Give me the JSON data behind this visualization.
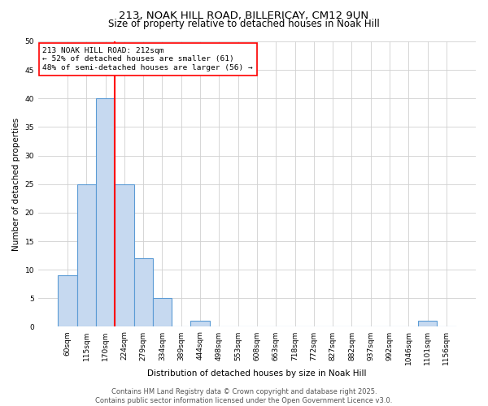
{
  "title_line1": "213, NOAK HILL ROAD, BILLERICAY, CM12 9UN",
  "title_line2": "Size of property relative to detached houses in Noak Hill",
  "xlabel": "Distribution of detached houses by size in Noak Hill",
  "ylabel": "Number of detached properties",
  "bin_labels": [
    "60sqm",
    "115sqm",
    "170sqm",
    "224sqm",
    "279sqm",
    "334sqm",
    "389sqm",
    "444sqm",
    "498sqm",
    "553sqm",
    "608sqm",
    "663sqm",
    "718sqm",
    "772sqm",
    "827sqm",
    "882sqm",
    "937sqm",
    "992sqm",
    "1046sqm",
    "1101sqm",
    "1156sqm"
  ],
  "bar_values": [
    9,
    25,
    40,
    25,
    12,
    5,
    0,
    1,
    0,
    0,
    0,
    0,
    0,
    0,
    0,
    0,
    0,
    0,
    0,
    1,
    0
  ],
  "bar_color": "#c6d9f0",
  "bar_edgecolor": "#5b9bd5",
  "vline_color": "red",
  "vline_pos": 2.5,
  "annotation_text": "213 NOAK HILL ROAD: 212sqm\n← 52% of detached houses are smaller (61)\n48% of semi-detached houses are larger (56) →",
  "annotation_box_color": "white",
  "annotation_box_edgecolor": "red",
  "ylim": [
    0,
    50
  ],
  "yticks": [
    0,
    5,
    10,
    15,
    20,
    25,
    30,
    35,
    40,
    45,
    50
  ],
  "grid_color": "#d0d0d0",
  "background_color": "white",
  "footnote": "Contains HM Land Registry data © Crown copyright and database right 2025.\nContains public sector information licensed under the Open Government Licence v3.0.",
  "title_fontsize": 9.5,
  "subtitle_fontsize": 8.5,
  "axis_label_fontsize": 7.5,
  "tick_fontsize": 6.5,
  "annotation_fontsize": 6.8,
  "footnote_fontsize": 6
}
